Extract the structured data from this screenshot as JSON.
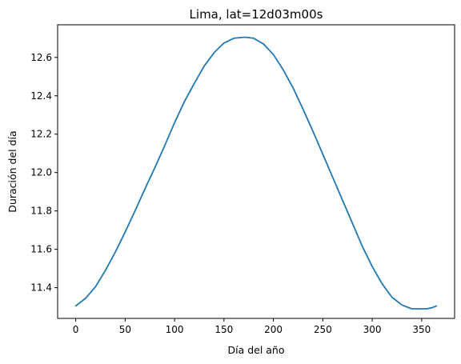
{
  "chart_data": {
    "type": "line",
    "title": "Lima, lat=12d03m00s",
    "xlabel": "Día del año",
    "ylabel": "Duración del día",
    "xlim": [
      -18.3,
      383.3
    ],
    "ylim": [
      11.24,
      12.77
    ],
    "xticks": [
      0,
      50,
      100,
      150,
      200,
      250,
      300,
      350
    ],
    "yticks": [
      11.4,
      11.6,
      11.8,
      12.0,
      12.2,
      12.4,
      12.6
    ],
    "xtick_labels": [
      "0",
      "50",
      "100",
      "150",
      "200",
      "250",
      "300",
      "350"
    ],
    "ytick_labels": [
      "11.4",
      "11.6",
      "11.8",
      "12.0",
      "12.2",
      "12.4",
      "12.6"
    ],
    "grid": false,
    "legend": "none",
    "series": [
      {
        "color": "#1f77b4",
        "x": [
          0,
          10,
          20,
          30,
          40,
          50,
          60,
          70,
          80,
          90,
          100,
          110,
          120,
          130,
          140,
          150,
          160,
          170,
          172,
          180,
          190,
          200,
          210,
          220,
          230,
          240,
          250,
          260,
          270,
          280,
          290,
          300,
          310,
          320,
          330,
          340,
          350,
          355,
          360,
          365
        ],
        "y": [
          11.305,
          11.345,
          11.405,
          11.49,
          11.585,
          11.69,
          11.8,
          11.915,
          12.025,
          12.14,
          12.26,
          12.37,
          12.465,
          12.555,
          12.625,
          12.675,
          12.7,
          12.705,
          12.705,
          12.7,
          12.67,
          12.615,
          12.535,
          12.44,
          12.33,
          12.215,
          12.095,
          11.975,
          11.855,
          11.735,
          11.615,
          11.51,
          11.42,
          11.35,
          11.31,
          11.29,
          11.29,
          11.29,
          11.295,
          11.305
        ]
      }
    ]
  }
}
